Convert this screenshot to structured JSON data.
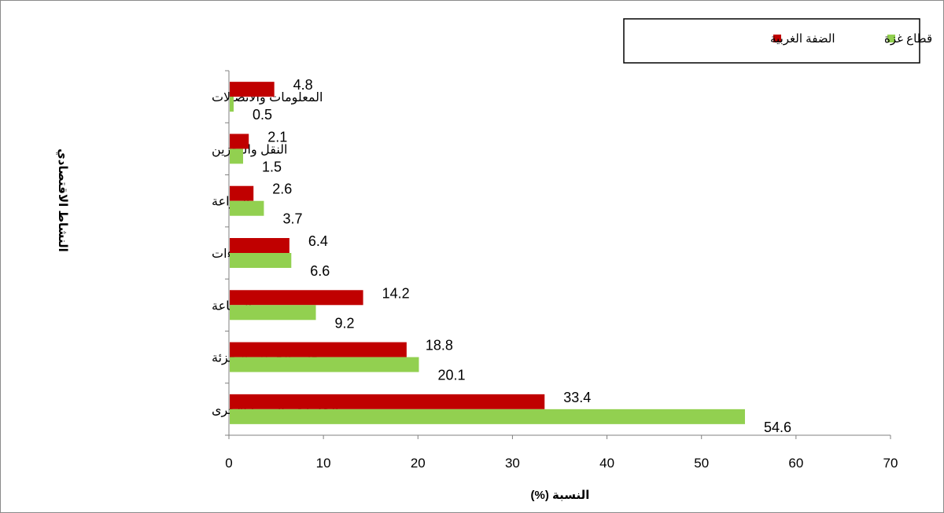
{
  "chart_data": {
    "type": "bar",
    "orientation": "horizontal",
    "categories": [
      "المعلومات والاتصالات",
      "النقل والتخزين",
      "الزراعة",
      "الانشاءات",
      "الصناعة",
      "تجارة الجملة والتجزئة",
      "الخدمات والفروع الأخرى"
    ],
    "series": [
      {
        "name": "الضفة الغربية",
        "color": "#c00000",
        "values": [
          4.8,
          2.1,
          2.6,
          6.4,
          14.2,
          18.8,
          33.4
        ]
      },
      {
        "name": "قطاع غزة",
        "color": "#92d050",
        "values": [
          0.5,
          1.5,
          3.7,
          6.6,
          9.2,
          20.1,
          54.6
        ]
      }
    ],
    "xlabel": "النسبة (%)",
    "ylabel": "النشاط الاقتصادي",
    "xlim": [
      0,
      70
    ],
    "xticks": [
      0,
      10,
      20,
      30,
      40,
      50,
      60,
      70
    ],
    "grid": false,
    "legend": {
      "position": "top-right",
      "order": [
        "قطاع غزة",
        "الضفة الغربية"
      ]
    }
  }
}
